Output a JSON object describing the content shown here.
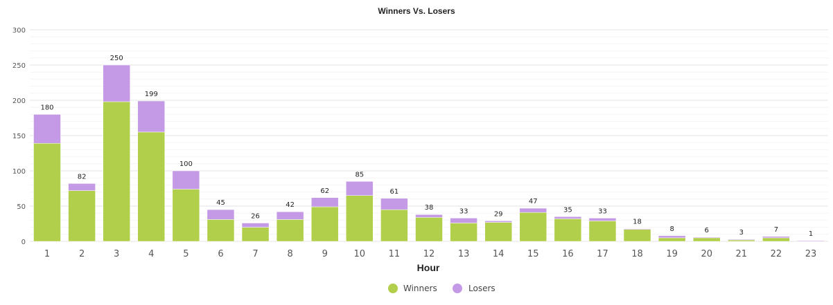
{
  "chart_data": {
    "type": "bar",
    "stacked": true,
    "title": "Winners Vs. Losers",
    "xlabel": "Hour",
    "ylabel": "",
    "ylim": [
      0,
      300
    ],
    "yticks": [
      0,
      50,
      100,
      150,
      200,
      250,
      300
    ],
    "grid": true,
    "legend_position": "bottom-center",
    "categories": [
      "1",
      "2",
      "3",
      "4",
      "5",
      "6",
      "7",
      "8",
      "9",
      "10",
      "11",
      "12",
      "13",
      "14",
      "15",
      "16",
      "17",
      "18",
      "19",
      "20",
      "21",
      "22",
      "23"
    ],
    "series": [
      {
        "name": "Winners",
        "color": "#b2cf4b",
        "values": [
          139,
          72,
          198,
          155,
          74,
          31,
          20,
          31,
          49,
          65,
          45,
          34,
          26,
          27,
          41,
          32,
          29,
          17,
          5,
          5,
          2,
          5,
          0
        ]
      },
      {
        "name": "Losers",
        "color": "#c49ae6",
        "values": [
          41,
          10,
          52,
          44,
          26,
          14,
          6,
          11,
          13,
          20,
          16,
          4,
          7,
          2,
          6,
          3,
          4,
          1,
          3,
          1,
          1,
          2,
          1
        ]
      }
    ],
    "totals": [
      180,
      82,
      250,
      199,
      100,
      45,
      26,
      42,
      62,
      85,
      61,
      38,
      33,
      29,
      47,
      35,
      33,
      18,
      8,
      6,
      3,
      7,
      1
    ]
  }
}
